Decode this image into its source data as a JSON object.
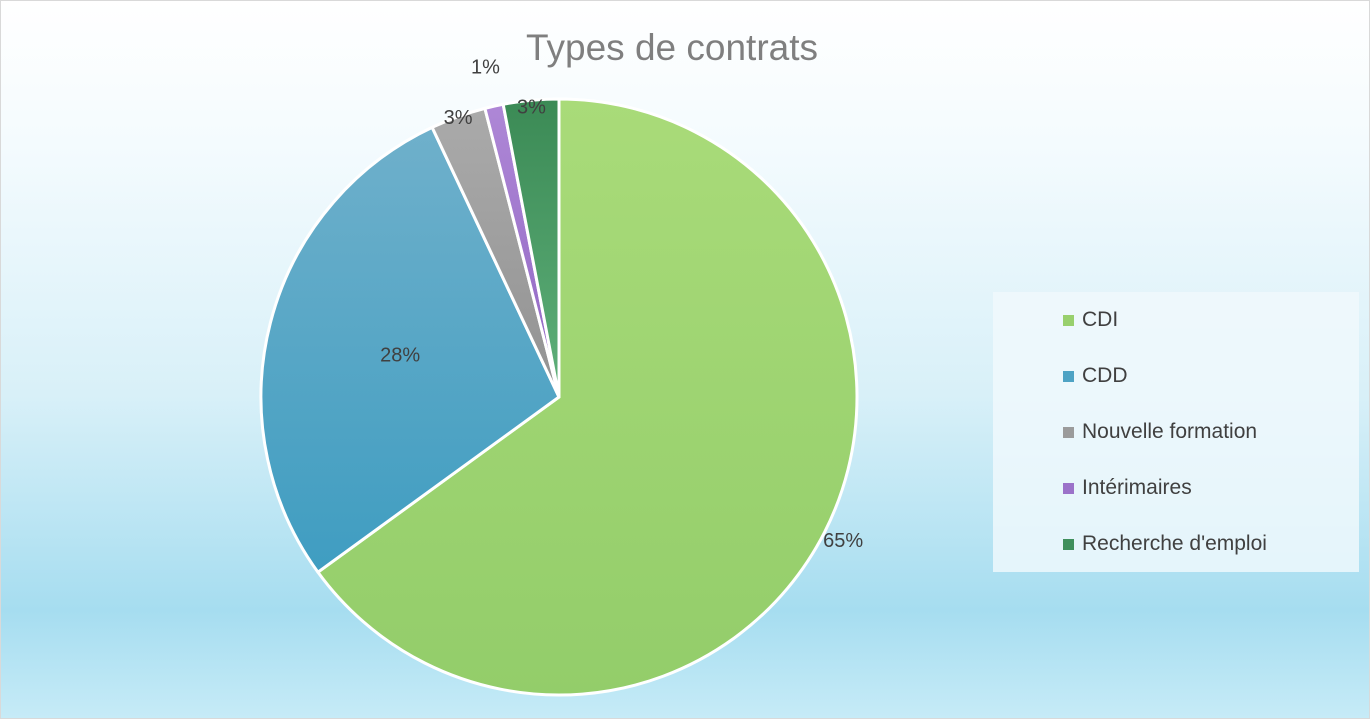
{
  "chart_data": {
    "type": "pie",
    "title": "Types de contrats",
    "categories": [
      "CDI",
      "CDD",
      "Nouvelle formation",
      "Intérimaires",
      "Recherche d'emploi"
    ],
    "values": [
      65,
      28,
      3,
      1,
      3
    ],
    "data_labels": [
      "65%",
      "28%",
      "3%",
      "1%",
      "3%"
    ],
    "colors": [
      "#98d06d",
      "#4ea3c4",
      "#9b9b9b",
      "#9b72c9",
      "#3f8f5c"
    ],
    "legend_position": "right"
  }
}
